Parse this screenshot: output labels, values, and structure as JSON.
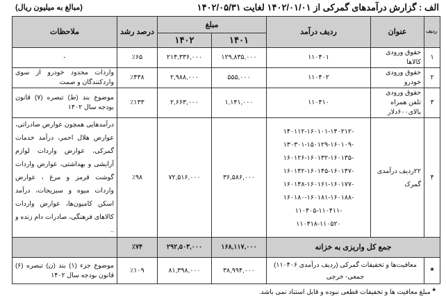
{
  "title": "الف : گزارش درآمدهای گمرکی از ۱۴۰۲/۰۱/۰۱ لغایت ۱۴۰۲/۰۵/۳۱",
  "unit_note": "(مبالغ به میلیون ریال)",
  "headers": {
    "row_no": "ردیف",
    "title": "عنوان",
    "revenue_code": "ردیف درآمد",
    "amount": "مبلغ",
    "year_1401": "۱۴۰۱",
    "year_1402": "۱۴۰۲",
    "growth": "درصد رشد",
    "remarks": "ملاحظات"
  },
  "rows": [
    {
      "no": "۱",
      "title": "حقوق ورودی کالاها",
      "code": "۱۱۰۴۰۱",
      "v1401": "۱۲۹,۸۳۵,۰۰۰",
      "v1402": "۲۱۴,۳۳۶,۰۰۰",
      "growth": "٪۶۵",
      "remarks": "-"
    },
    {
      "no": "۲",
      "title": "حقوق ورودی خودرو",
      "code": "۱۱۰۴۰۲",
      "v1401": "۵۵۵,۰۰۰",
      "v1402": "۲,۹۸۸,۰۰۰",
      "growth": "٪۴۳۸",
      "remarks": "واردات محدود خودرو از سوی واردکنندگان و صمت"
    },
    {
      "no": "۳",
      "title": "حقوق ورودی تلفن همراه بالای۶۰۰دلار",
      "code": "۱۱۰۴۱۰",
      "v1401": "۱,۱۴۱,۰۰۰",
      "v1402": "۲,۶۶۳,۰۰۰",
      "growth": "٪۱۳۳",
      "remarks": "موضوع بند (ط) تبصره (۷) قانون بودجه سال ۱۴۰۲"
    },
    {
      "no": "۴",
      "title": "۲۲ردیف درآمدی گمرک",
      "codes": [
        "۱۴۰۱۱۲-۱۶۰۱۰۱-۱۴۰۲۱۲-",
        "۱۳۰۳۰۱-۱۵۰۱۲۹-۱۶۰۱۰۹-",
        "۱۶۰۱۲۶-۱۶۰۱۳۲-۱۶۰۱۳۵-",
        "۱۶۰۱۴۲-۱۶۰۱۴۵-۱۶۰۱۴۷-",
        "۱۶۰۱۴۸-۱۶۰۱۶۱-۱۶۰۱۷۷-",
        "۱۶۰۱۸۰-۱۶۰۱۸۱-۱۶۰۱۸۸-",
        "۱۱۰۴۰۵-۱۱۰۴۱۱-",
        "۱۱۰۴۱۸-۱۱۰۵۲۰"
      ],
      "v1401": "۳۶,۵۸۶,۰۰۰",
      "v1402": "۷۲,۵۱۶,۰۰۰",
      "growth": "٪۹۸",
      "remarks": "درآمدهایی همچون عوارض صادراتی، عوارض هلال احمر، درآمد خدمات گمرکی، عوارض واردات لوازم آرایشی و بهداشتی، عوارض واردات گوشت قرمز و مرغ ، عوارض واردات میوه و سبزیجات، درآمد اسکن کامیون‌ها، عوارض واردات کالاهای فرهنگی، صادرات دام زنده و .."
    }
  ],
  "total": {
    "label": "جمع کل واریزی به خزانه",
    "v1401": "۱۶۸,۱۱۷,۰۰۰",
    "v1402": "۲۹۲,۵۰۳,۰۰۰",
    "growth": "٪۷۴"
  },
  "exemptions": {
    "no": "*",
    "title": "معافیت‌ها و تخفیفات گمرکی (ردیف درآمدی ۱۱۰۴۰۶) جمعی- خرجی",
    "v1401": "۳۸,۹۹۴,۰۰۰",
    "v1402": "۸۱,۳۹۸,۰۰۰",
    "growth": "٪۱۰۹",
    "remarks": "موضوع جزء (۱) بند (ن) تبصره (۶) قانون بودجه سال ۱۴۰۲"
  },
  "footnote": {
    "mark": "*",
    "text": "مبلغ معافیت ها و تخفیفات قطعی نبوده و قابل استناد نمی باشد."
  }
}
